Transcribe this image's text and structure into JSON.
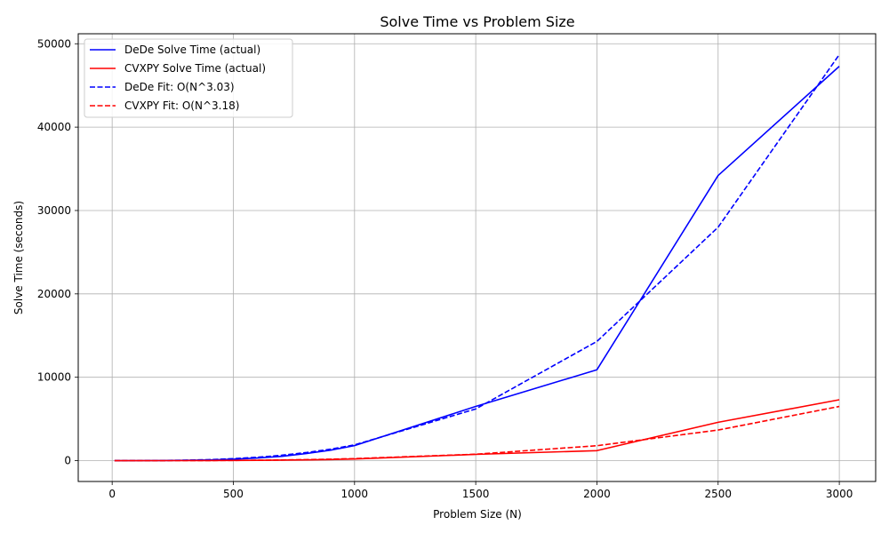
{
  "chart_data": {
    "type": "line",
    "title": "Solve Time vs Problem Size",
    "xlabel": "Problem Size (N)",
    "ylabel": "Solve Time (seconds)",
    "xlim": [
      -140,
      3150
    ],
    "ylim": [
      -2500,
      51200
    ],
    "xticks": [
      0,
      500,
      1000,
      1500,
      2000,
      2500,
      3000
    ],
    "yticks": [
      0,
      10000,
      20000,
      30000,
      40000,
      50000
    ],
    "grid": true,
    "legend_position": "upper left",
    "series": [
      {
        "name": "DeDe Solve Time (actual)",
        "color": "#0000ff",
        "dash": "solid",
        "x": [
          10,
          100,
          200,
          300,
          400,
          500,
          600,
          700,
          800,
          900,
          1000,
          1500,
          2000,
          2500,
          3000
        ],
        "y": [
          0.5,
          4,
          15,
          35,
          80,
          170,
          320,
          520,
          850,
          1250,
          1800,
          6500,
          10900,
          34200,
          47300
        ]
      },
      {
        "name": "CVXPY Solve Time (actual)",
        "color": "#ff0000",
        "dash": "solid",
        "x": [
          10,
          100,
          200,
          300,
          400,
          500,
          600,
          700,
          800,
          900,
          1000,
          1500,
          2000,
          2500,
          3000
        ],
        "y": [
          0.1,
          1,
          3,
          6,
          12,
          25,
          40,
          60,
          90,
          130,
          200,
          750,
          1200,
          4600,
          7300
        ]
      },
      {
        "name": "DeDe Fit: O(N^3.03)",
        "color": "#0000ff",
        "dash": "dashed",
        "x": [
          10,
          100,
          200,
          300,
          400,
          500,
          600,
          700,
          800,
          900,
          1000,
          1500,
          2000,
          2500,
          3000
        ],
        "y": [
          0,
          2,
          15,
          50,
          120,
          235,
          405,
          645,
          965,
          1370,
          1885,
          6200,
          14300,
          28000,
          48700
        ]
      },
      {
        "name": "CVXPY Fit: O(N^3.18)",
        "color": "#ff0000",
        "dash": "dashed",
        "x": [
          10,
          100,
          200,
          300,
          400,
          500,
          600,
          700,
          800,
          900,
          1000,
          1500,
          2000,
          2500,
          3000
        ],
        "y": [
          0,
          0.2,
          1.5,
          5,
          13,
          27,
          48,
          80,
          122,
          177,
          246,
          770,
          1790,
          3670,
          6500
        ]
      }
    ]
  }
}
